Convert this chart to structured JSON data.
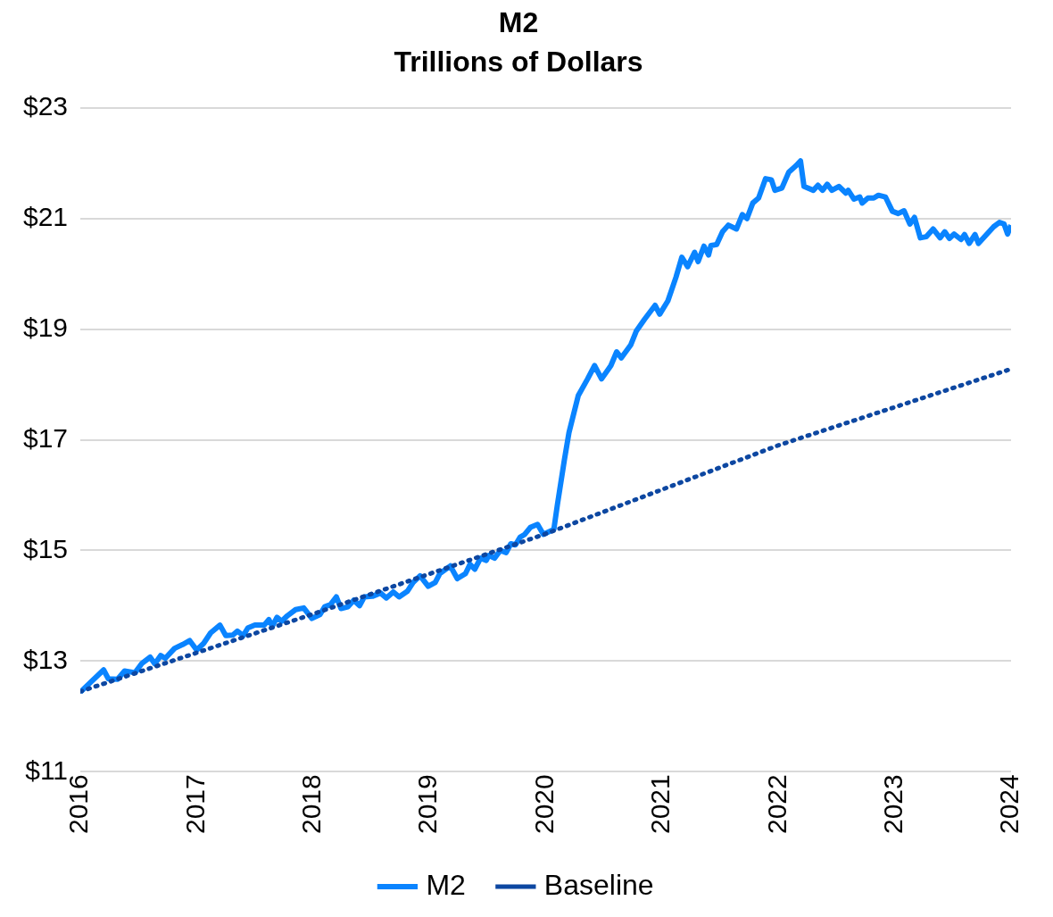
{
  "chart_data": {
    "type": "line",
    "title": "M2",
    "subtitle": "Trillions of Dollars",
    "series": [
      {
        "name": "M2",
        "color": "#0a84ff",
        "line_style": "solid",
        "x": [
          2016,
          2016.2,
          2016.24,
          2016.32,
          2016.38,
          2016.47,
          2016.53,
          2016.6,
          2016.64,
          2016.69,
          2016.73,
          2016.81,
          2016.88,
          2016.94,
          2017,
          2017.06,
          2017.12,
          2017.2,
          2017.25,
          2017.31,
          2017.35,
          2017.4,
          2017.44,
          2017.5,
          2017.58,
          2017.62,
          2017.65,
          2017.69,
          2017.73,
          2017.78,
          2017.85,
          2017.92,
          2017.99,
          2018.06,
          2018.1,
          2018.15,
          2018.2,
          2018.24,
          2018.3,
          2018.35,
          2018.4,
          2018.44,
          2018.51,
          2018.58,
          2018.63,
          2018.69,
          2018.74,
          2018.81,
          2018.86,
          2018.92,
          2018.99,
          2019.05,
          2019.09,
          2019.18,
          2019.24,
          2019.31,
          2019.35,
          2019.39,
          2019.44,
          2019.49,
          2019.51,
          2019.56,
          2019.61,
          2019.66,
          2019.7,
          2019.74,
          2019.78,
          2019.82,
          2019.87,
          2019.93,
          2019.98,
          2020.07,
          2020.1,
          2020.16,
          2020.2,
          2020.28,
          2020.36,
          2020.42,
          2020.48,
          2020.56,
          2020.61,
          2020.65,
          2020.73,
          2020.78,
          2020.85,
          2020.94,
          2020.98,
          2021.05,
          2021.12,
          2021.17,
          2021.22,
          2021.28,
          2021.31,
          2021.36,
          2021.4,
          2021.42,
          2021.47,
          2021.52,
          2021.57,
          2021.64,
          2021.69,
          2021.73,
          2021.78,
          2021.83,
          2021.89,
          2021.94,
          2021.97,
          2022.03,
          2022.09,
          2022.15,
          2022.19,
          2022.22,
          2022.3,
          2022.34,
          2022.38,
          2022.42,
          2022.46,
          2022.52,
          2022.58,
          2022.6,
          2022.65,
          2022.7,
          2022.72,
          2022.77,
          2022.82,
          2022.86,
          2022.92,
          2022.98,
          2023.03,
          2023.08,
          2023.13,
          2023.17,
          2023.22,
          2023.27,
          2023.33,
          2023.39,
          2023.43,
          2023.47,
          2023.51,
          2023.57,
          2023.6,
          2023.64,
          2023.69,
          2023.72,
          2023.78,
          2023.85,
          2023.9,
          2023.94,
          2023.97,
          2024
        ],
        "values": [
          12.44,
          12.84,
          12.68,
          12.67,
          12.82,
          12.79,
          12.96,
          13.07,
          12.95,
          13.1,
          13.05,
          13.23,
          13.3,
          13.37,
          13.2,
          13.32,
          13.51,
          13.65,
          13.46,
          13.47,
          13.54,
          13.46,
          13.6,
          13.65,
          13.65,
          13.75,
          13.63,
          13.79,
          13.72,
          13.82,
          13.93,
          13.96,
          13.77,
          13.84,
          13.98,
          14.02,
          14.16,
          13.95,
          13.98,
          14.1,
          14.0,
          14.16,
          14.17,
          14.23,
          14.14,
          14.25,
          14.16,
          14.26,
          14.42,
          14.54,
          14.35,
          14.42,
          14.58,
          14.72,
          14.49,
          14.58,
          14.75,
          14.66,
          14.86,
          14.82,
          14.91,
          14.86,
          15.0,
          14.96,
          15.12,
          15.1,
          15.24,
          15.29,
          15.42,
          15.47,
          15.29,
          15.38,
          15.82,
          16.63,
          17.13,
          17.8,
          18.1,
          18.34,
          18.1,
          18.34,
          18.59,
          18.48,
          18.71,
          18.97,
          19.18,
          19.43,
          19.27,
          19.51,
          19.94,
          20.3,
          20.13,
          20.39,
          20.22,
          20.5,
          20.34,
          20.51,
          20.53,
          20.76,
          20.88,
          20.81,
          21.07,
          21.0,
          21.28,
          21.37,
          21.72,
          21.7,
          21.51,
          21.55,
          21.84,
          21.95,
          22.04,
          21.58,
          21.51,
          21.6,
          21.51,
          21.62,
          21.51,
          21.58,
          21.46,
          21.51,
          21.35,
          21.39,
          21.28,
          21.37,
          21.37,
          21.42,
          21.39,
          21.13,
          21.09,
          21.14,
          20.9,
          21.02,
          20.65,
          20.67,
          20.81,
          20.65,
          20.76,
          20.64,
          20.72,
          20.62,
          20.71,
          20.55,
          20.71,
          20.55,
          20.69,
          20.85,
          20.93,
          20.9,
          20.72,
          20.88
        ]
      },
      {
        "name": "Baseline",
        "color": "#0d47a1",
        "line_style": "dotted",
        "x": [
          2016,
          2018,
          2020,
          2022,
          2024
        ],
        "values": [
          12.45,
          13.85,
          15.3,
          16.9,
          18.28
        ]
      }
    ],
    "xlim": [
      2016,
      2024
    ],
    "xticks": [
      2016,
      2017,
      2018,
      2019,
      2020,
      2021,
      2022,
      2023,
      2024
    ],
    "ylim": [
      11,
      23
    ],
    "yticks": [
      {
        "value": 11,
        "label": "$11"
      },
      {
        "value": 13,
        "label": "$13"
      },
      {
        "value": 15,
        "label": "$15"
      },
      {
        "value": 17,
        "label": "$17"
      },
      {
        "value": 19,
        "label": "$19"
      },
      {
        "value": 21,
        "label": "$21"
      },
      {
        "value": 23,
        "label": "$23"
      }
    ],
    "grid": "y",
    "legend": "bottom",
    "marker": "none"
  }
}
